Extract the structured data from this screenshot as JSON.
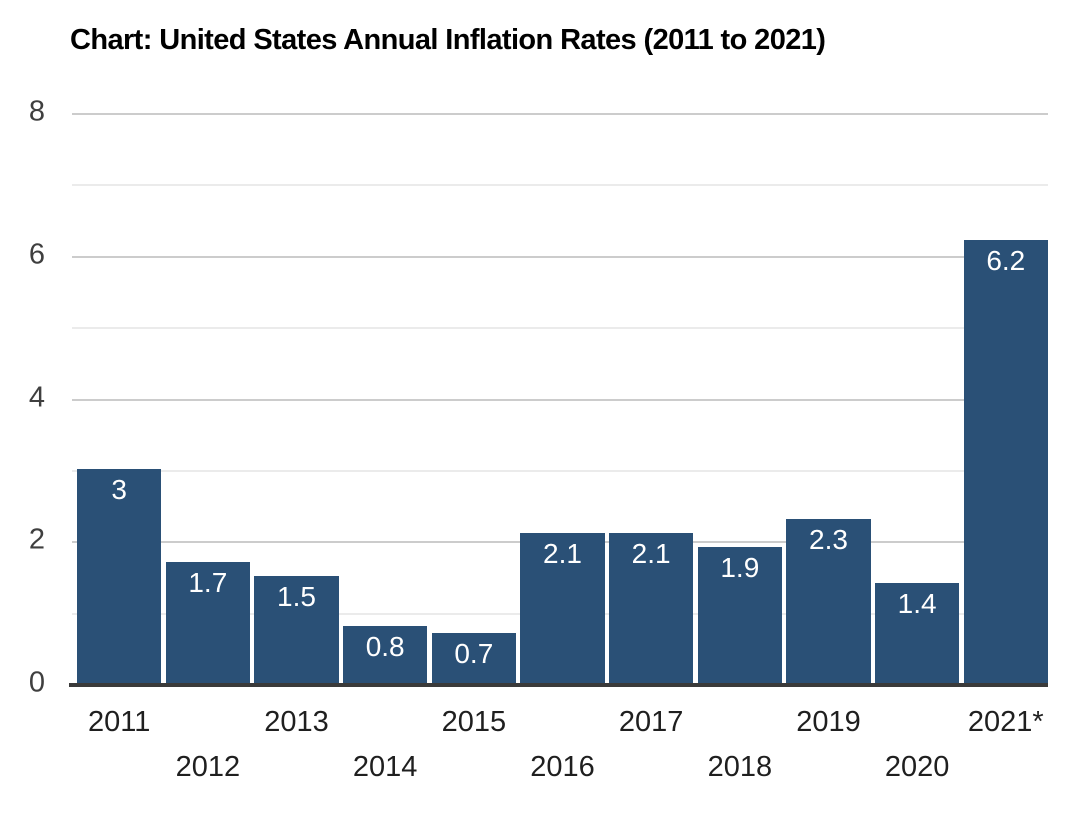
{
  "page": {
    "background": "#ffffff"
  },
  "chart_data": {
    "type": "bar",
    "title": "Chart: United States Annual Inflation Rates (2011 to 2021)",
    "categories": [
      "2011",
      "2012",
      "2013",
      "2014",
      "2015",
      "2016",
      "2017",
      "2018",
      "2019",
      "2020",
      "2021*"
    ],
    "values": [
      3,
      1.7,
      1.5,
      0.8,
      0.7,
      2.1,
      2.1,
      1.9,
      2.3,
      1.4,
      6.2
    ],
    "value_labels": [
      "3",
      "1.7",
      "1.5",
      "0.8",
      "0.7",
      "2.1",
      "2.1",
      "1.9",
      "2.3",
      "1.4",
      "6.2"
    ],
    "xlabel": "",
    "ylabel": "",
    "ylim": [
      0,
      8
    ],
    "yticks": [
      0,
      2,
      4,
      6,
      8
    ],
    "minor_gridlines": [
      1,
      3,
      5,
      7
    ],
    "major_gridlines": [
      2,
      4,
      6,
      8
    ],
    "grid": "on",
    "legend": "none",
    "x_label_layout": "staggered-two-rows",
    "value_label_position": "inside-top",
    "colors": {
      "bar": "#2a5076",
      "bar_label": "#ffffff",
      "major_gridline": "#cccccc",
      "minor_gridline": "#ebebeb",
      "axis_line": "#3a3a3a",
      "y_tick_label": "#3f3f3f",
      "x_tick_label": "#1f1f1f",
      "title": "#000000"
    }
  }
}
